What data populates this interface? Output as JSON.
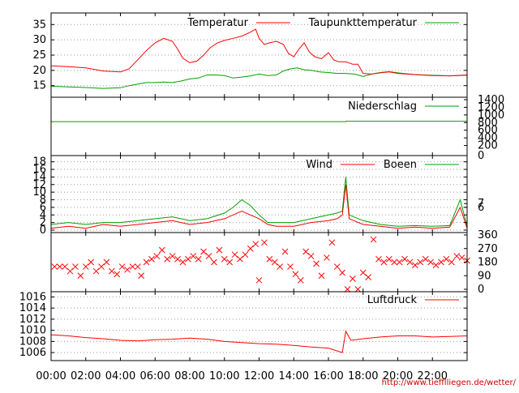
{
  "chart_data": [
    {
      "type": "line",
      "x_range": [
        0,
        24
      ],
      "ylim": [
        12,
        38
      ],
      "yticks": [
        "15",
        "20",
        "25",
        "30",
        "35"
      ],
      "grid": "dotted horizontal",
      "legend_placement": "top-right",
      "series": [
        {
          "name": "Temperatur",
          "color": "#ff0000",
          "points": [
            [
              0,
              21.5
            ],
            [
              1,
              21.2
            ],
            [
              2,
              20.8
            ],
            [
              3,
              19.8
            ],
            [
              4,
              19.5
            ],
            [
              4.5,
              20.5
            ],
            [
              5,
              23.5
            ],
            [
              5.5,
              26.5
            ],
            [
              6,
              29
            ],
            [
              6.5,
              30.5
            ],
            [
              7,
              29.5
            ],
            [
              7.3,
              27
            ],
            [
              7.6,
              24
            ],
            [
              8,
              22.5
            ],
            [
              8.4,
              23
            ],
            [
              8.8,
              25
            ],
            [
              9.2,
              27.5
            ],
            [
              9.6,
              29
            ],
            [
              10,
              29.8
            ],
            [
              10.5,
              30.5
            ],
            [
              11,
              31.2
            ],
            [
              11.5,
              32.5
            ],
            [
              11.8,
              33.5
            ],
            [
              12,
              30.5
            ],
            [
              12.3,
              28.5
            ],
            [
              12.6,
              29
            ],
            [
              13,
              29.5
            ],
            [
              13.4,
              28.5
            ],
            [
              13.7,
              25.5
            ],
            [
              14,
              24.5
            ],
            [
              14.3,
              27
            ],
            [
              14.6,
              29
            ],
            [
              14.9,
              26
            ],
            [
              15.2,
              24.5
            ],
            [
              15.6,
              23.8
            ],
            [
              16,
              25.8
            ],
            [
              16.3,
              23.5
            ],
            [
              16.6,
              22.8
            ],
            [
              17,
              22.8
            ],
            [
              17.4,
              22
            ],
            [
              17.7,
              22
            ],
            [
              18,
              19
            ],
            [
              18.5,
              18.8
            ],
            [
              19,
              19.2
            ],
            [
              19.5,
              19.5
            ],
            [
              20,
              19
            ],
            [
              21,
              18.6
            ],
            [
              22,
              18.3
            ],
            [
              23,
              18.2
            ],
            [
              24,
              18.5
            ]
          ]
        },
        {
          "name": "Taupunkttemperatur",
          "color": "#00a000",
          "points": [
            [
              0,
              14.8
            ],
            [
              1,
              14.6
            ],
            [
              2,
              14.4
            ],
            [
              3,
              14.1
            ],
            [
              4,
              14.3
            ],
            [
              4.5,
              15
            ],
            [
              5,
              15.5
            ],
            [
              5.5,
              16
            ],
            [
              6,
              16
            ],
            [
              6.5,
              16.2
            ],
            [
              7,
              16
            ],
            [
              7.5,
              16.5
            ],
            [
              8,
              17.2
            ],
            [
              8.5,
              17.5
            ],
            [
              9,
              18.5
            ],
            [
              9.5,
              18.5
            ],
            [
              10,
              18.3
            ],
            [
              10.5,
              17.5
            ],
            [
              11,
              17.8
            ],
            [
              11.5,
              18.2
            ],
            [
              12,
              18.8
            ],
            [
              12.5,
              18.3
            ],
            [
              13,
              18.5
            ],
            [
              13.4,
              19.8
            ],
            [
              13.8,
              20.5
            ],
            [
              14.2,
              20.8
            ],
            [
              14.6,
              20.2
            ],
            [
              15,
              20
            ],
            [
              15.5,
              19.5
            ],
            [
              16,
              19.3
            ],
            [
              16.5,
              19
            ],
            [
              17,
              19
            ],
            [
              17.5,
              18.8
            ],
            [
              18,
              18
            ],
            [
              18.5,
              18.8
            ],
            [
              19,
              19.3
            ],
            [
              19.5,
              19.6
            ],
            [
              20,
              19.2
            ],
            [
              21,
              18.6
            ],
            [
              22,
              18.4
            ],
            [
              23,
              18.2
            ],
            [
              24,
              18.4
            ]
          ]
        }
      ]
    },
    {
      "type": "line",
      "x_range": [
        0,
        24
      ],
      "ylim": [
        0,
        1400
      ],
      "yticks_right": [
        "200",
        "400",
        "600",
        "800",
        "1000",
        "1200",
        "1400"
      ],
      "right_zero_label": "0",
      "legend_placement": "top-right",
      "series": [
        {
          "name": "Niederschlag",
          "color": "#00a000",
          "points": [
            [
              0,
              825
            ],
            [
              17,
              825
            ],
            [
              17.01,
              835
            ],
            [
              24,
              835
            ]
          ]
        }
      ]
    },
    {
      "type": "line",
      "x_range": [
        0,
        24
      ],
      "ylim": [
        0,
        19
      ],
      "yticks": [
        "0",
        "2",
        "4",
        "6",
        "8",
        "10",
        "12",
        "14",
        "16",
        "18"
      ],
      "yticks_right": [
        "6",
        "7"
      ],
      "legend_placement": "top-right",
      "series": [
        {
          "name": "Wind",
          "color": "#ff0000",
          "points": [
            [
              0,
              0.5
            ],
            [
              1,
              1
            ],
            [
              2,
              0.5
            ],
            [
              3,
              1.5
            ],
            [
              4,
              1
            ],
            [
              5,
              1.5
            ],
            [
              6,
              2
            ],
            [
              7,
              2.5
            ],
            [
              8,
              1.5
            ],
            [
              9,
              2
            ],
            [
              10,
              3
            ],
            [
              10.5,
              4
            ],
            [
              11,
              5
            ],
            [
              11.5,
              4
            ],
            [
              12,
              3
            ],
            [
              12.5,
              1.5
            ],
            [
              13,
              1
            ],
            [
              14,
              1
            ],
            [
              15,
              2
            ],
            [
              16,
              2.5
            ],
            [
              16.5,
              3
            ],
            [
              16.8,
              4
            ],
            [
              17,
              12
            ],
            [
              17.2,
              3
            ],
            [
              18,
              1.5
            ],
            [
              19,
              1
            ],
            [
              20,
              0.5
            ],
            [
              21,
              0.8
            ],
            [
              22,
              0.5
            ],
            [
              23,
              0.8
            ],
            [
              23.6,
              6
            ],
            [
              24,
              0.5
            ]
          ]
        },
        {
          "name": "Boeen",
          "color": "#00a000",
          "points": [
            [
              0,
              1.5
            ],
            [
              1,
              2
            ],
            [
              2,
              1.5
            ],
            [
              3,
              2
            ],
            [
              4,
              2
            ],
            [
              5,
              2.5
            ],
            [
              6,
              3
            ],
            [
              7,
              3.5
            ],
            [
              8,
              2.5
            ],
            [
              9,
              3
            ],
            [
              10,
              4.5
            ],
            [
              10.5,
              6
            ],
            [
              11,
              8
            ],
            [
              11.5,
              6.5
            ],
            [
              12,
              4
            ],
            [
              12.5,
              2
            ],
            [
              13,
              2
            ],
            [
              14,
              2
            ],
            [
              15,
              3
            ],
            [
              16,
              4
            ],
            [
              16.5,
              4.5
            ],
            [
              16.8,
              5
            ],
            [
              17,
              14
            ],
            [
              17.2,
              4
            ],
            [
              18,
              2.5
            ],
            [
              19,
              1.5
            ],
            [
              20,
              1
            ],
            [
              21,
              1.2
            ],
            [
              22,
              1
            ],
            [
              23,
              1.2
            ],
            [
              23.6,
              8
            ],
            [
              24,
              1
            ]
          ]
        }
      ]
    },
    {
      "type": "scatter",
      "x_range": [
        0,
        24
      ],
      "ylim": [
        0,
        360
      ],
      "yticks_right": [
        "0",
        "90",
        "180",
        "270",
        "360"
      ],
      "marker": "x",
      "color": "#ff0000",
      "points": [
        [
          0.2,
          150
        ],
        [
          0.5,
          150
        ],
        [
          0.8,
          150
        ],
        [
          1.1,
          120
        ],
        [
          1.4,
          150
        ],
        [
          1.7,
          90
        ],
        [
          2,
          150
        ],
        [
          2.3,
          180
        ],
        [
          2.6,
          120
        ],
        [
          2.9,
          150
        ],
        [
          3.2,
          180
        ],
        [
          3.5,
          120
        ],
        [
          3.8,
          100
        ],
        [
          4.1,
          150
        ],
        [
          4.4,
          130
        ],
        [
          4.7,
          150
        ],
        [
          5,
          150
        ],
        [
          5.2,
          90
        ],
        [
          5.5,
          180
        ],
        [
          5.8,
          200
        ],
        [
          6.1,
          220
        ],
        [
          6.4,
          260
        ],
        [
          6.7,
          200
        ],
        [
          7,
          220
        ],
        [
          7.3,
          200
        ],
        [
          7.6,
          180
        ],
        [
          7.9,
          200
        ],
        [
          8.2,
          220
        ],
        [
          8.5,
          200
        ],
        [
          8.8,
          250
        ],
        [
          9.1,
          220
        ],
        [
          9.4,
          180
        ],
        [
          9.7,
          260
        ],
        [
          10,
          200
        ],
        [
          10.3,
          180
        ],
        [
          10.6,
          230
        ],
        [
          10.9,
          200
        ],
        [
          11.2,
          230
        ],
        [
          11.5,
          270
        ],
        [
          11.8,
          300
        ],
        [
          12,
          60
        ],
        [
          12.3,
          310
        ],
        [
          12.6,
          200
        ],
        [
          12.9,
          180
        ],
        [
          13.2,
          150
        ],
        [
          13.5,
          250
        ],
        [
          13.8,
          150
        ],
        [
          14.1,
          100
        ],
        [
          14.4,
          60
        ],
        [
          14.7,
          250
        ],
        [
          15,
          220
        ],
        [
          15.3,
          170
        ],
        [
          15.6,
          90
        ],
        [
          15.9,
          210
        ],
        [
          16.2,
          310
        ],
        [
          16.5,
          150
        ],
        [
          16.8,
          110
        ],
        [
          17.1,
          0
        ],
        [
          17.4,
          70
        ],
        [
          17.7,
          0
        ],
        [
          18,
          110
        ],
        [
          18.3,
          80
        ],
        [
          18.6,
          330
        ],
        [
          18.9,
          200
        ],
        [
          19.2,
          180
        ],
        [
          19.5,
          200
        ],
        [
          19.8,
          180
        ],
        [
          20.1,
          180
        ],
        [
          20.4,
          200
        ],
        [
          20.7,
          180
        ],
        [
          21,
          160
        ],
        [
          21.3,
          180
        ],
        [
          21.6,
          200
        ],
        [
          21.9,
          180
        ],
        [
          22.2,
          160
        ],
        [
          22.5,
          180
        ],
        [
          22.8,
          200
        ],
        [
          23.1,
          180
        ],
        [
          23.4,
          220
        ],
        [
          23.7,
          210
        ],
        [
          24,
          190
        ]
      ]
    },
    {
      "type": "line",
      "x_range": [
        0,
        24
      ],
      "ylim": [
        1005,
        1016.5
      ],
      "yticks": [
        "1006",
        "1008",
        "1010",
        "1012",
        "1014",
        "1016"
      ],
      "legend_placement": "top-right",
      "series": [
        {
          "name": "Luftdruck",
          "color": "#ff0000",
          "points": [
            [
              0,
              1009.2
            ],
            [
              1,
              1009
            ],
            [
              2,
              1008.7
            ],
            [
              3,
              1008.5
            ],
            [
              4,
              1008.2
            ],
            [
              5,
              1008.1
            ],
            [
              6,
              1008.3
            ],
            [
              7,
              1008.4
            ],
            [
              8,
              1008.6
            ],
            [
              9,
              1008.4
            ],
            [
              10,
              1008
            ],
            [
              11,
              1007.8
            ],
            [
              12,
              1007.6
            ],
            [
              13,
              1007.5
            ],
            [
              14,
              1007.3
            ],
            [
              15,
              1007
            ],
            [
              16,
              1006.8
            ],
            [
              16.8,
              1006
            ],
            [
              17,
              1009.8
            ],
            [
              17.3,
              1008.2
            ],
            [
              18,
              1008.5
            ],
            [
              19,
              1008.8
            ],
            [
              20,
              1009
            ],
            [
              21,
              1009
            ],
            [
              22,
              1008.8
            ],
            [
              23,
              1008.9
            ],
            [
              24,
              1009
            ]
          ]
        }
      ]
    }
  ],
  "x_axis": {
    "ticks": [
      "00:00",
      "02:00",
      "04:00",
      "06:00",
      "08:00",
      "10:00",
      "12:00",
      "14:00",
      "16:00",
      "18:00",
      "20:00",
      "22:00"
    ]
  },
  "credit": "http://www.tiefflliegen.de/wetter/"
}
